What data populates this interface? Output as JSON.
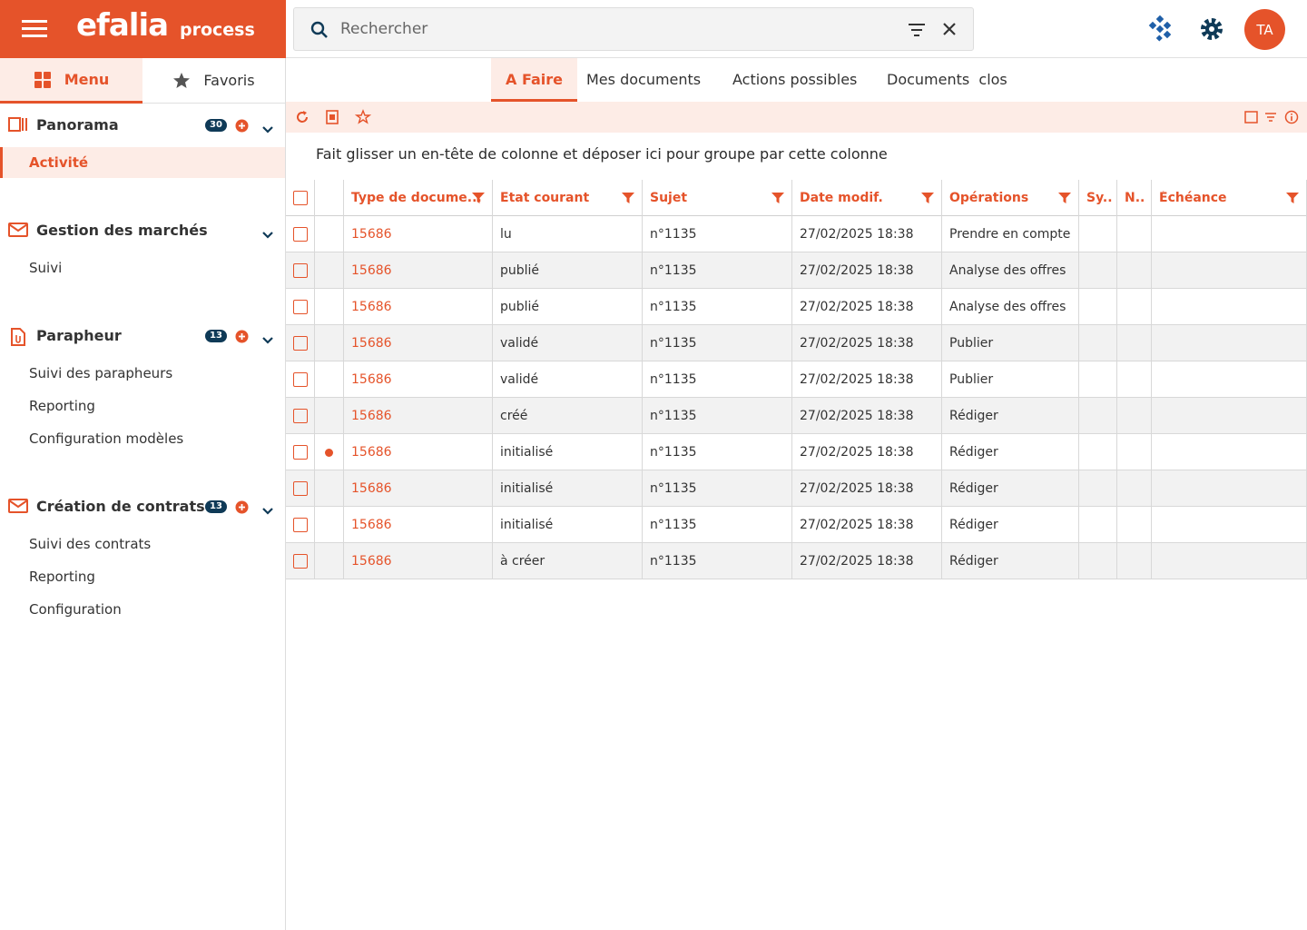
{
  "header": {
    "brand": "efalia",
    "product": "process",
    "search_placeholder": "Rechercher",
    "avatar": "TA"
  },
  "sidebar": {
    "tabs": [
      "Menu",
      "Favoris"
    ],
    "sections": [
      {
        "title": "Panorama",
        "badge": 30,
        "add": true,
        "icon": "panorama",
        "items": [
          {
            "label": "Activité",
            "active": true
          }
        ]
      },
      {
        "title": "Gestion des marchés",
        "icon": "mail",
        "items": [
          {
            "label": "Suivi"
          }
        ]
      },
      {
        "title": "Parapheur",
        "badge": 13,
        "add": true,
        "icon": "doc",
        "items": [
          {
            "label": "Suivi des parapheurs"
          },
          {
            "label": "Reporting"
          },
          {
            "label": "Configuration modèles"
          }
        ]
      },
      {
        "title": "Création de contrats",
        "badge": 13,
        "add": true,
        "icon": "mail",
        "items": [
          {
            "label": "Suivi des contrats"
          },
          {
            "label": "Reporting"
          },
          {
            "label": "Configuration"
          }
        ]
      }
    ]
  },
  "tabs": {
    "items": [
      "A Faire",
      "Mes documents",
      "Actions possibles",
      "Documents  clos"
    ],
    "active": 0
  },
  "group_hint": "Fait glisser un en-tête de colonne et déposer ici pour groupe par cette colonne",
  "table": {
    "columns": [
      {
        "label": "Type de docume...",
        "filter": true
      },
      {
        "label": "Etat courant",
        "filter": true
      },
      {
        "label": "Sujet",
        "filter": true
      },
      {
        "label": "Date modif.",
        "filter": true
      },
      {
        "label": "Opérations",
        "filter": true
      },
      {
        "label": "Sy..",
        "filter": false
      },
      {
        "label": "N..",
        "filter": false
      },
      {
        "label": "Échéance",
        "filter": true
      }
    ],
    "rows": [
      {
        "flag": false,
        "cells": [
          "15686",
          "lu",
          "n°1135",
          "27/02/2025 18:38",
          "Prendre en compte"
        ]
      },
      {
        "flag": false,
        "cells": [
          "15686",
          "publié",
          "n°1135",
          "27/02/2025 18:38",
          "Analyse des offres"
        ]
      },
      {
        "flag": false,
        "cells": [
          "15686",
          "publié",
          "n°1135",
          "27/02/2025 18:38",
          "Analyse des offres"
        ]
      },
      {
        "flag": false,
        "cells": [
          "15686",
          "validé",
          "n°1135",
          "27/02/2025 18:38",
          "Publier"
        ]
      },
      {
        "flag": false,
        "cells": [
          "15686",
          "validé",
          "n°1135",
          "27/02/2025 18:38",
          "Publier"
        ]
      },
      {
        "flag": false,
        "cells": [
          "15686",
          "créé",
          "n°1135",
          "27/02/2025 18:38",
          "Rédiger"
        ]
      },
      {
        "flag": true,
        "cells": [
          "15686",
          "initialisé",
          "n°1135",
          "27/02/2025 18:38",
          "Rédiger"
        ]
      },
      {
        "flag": false,
        "cells": [
          "15686",
          "initialisé",
          "n°1135",
          "27/02/2025 18:38",
          "Rédiger"
        ]
      },
      {
        "flag": false,
        "cells": [
          "15686",
          "initialisé",
          "n°1135",
          "27/02/2025 18:38",
          "Rédiger"
        ]
      },
      {
        "flag": false,
        "cells": [
          "15686",
          "à créer",
          "n°1135",
          "27/02/2025 18:38",
          "Rédiger"
        ]
      }
    ]
  }
}
